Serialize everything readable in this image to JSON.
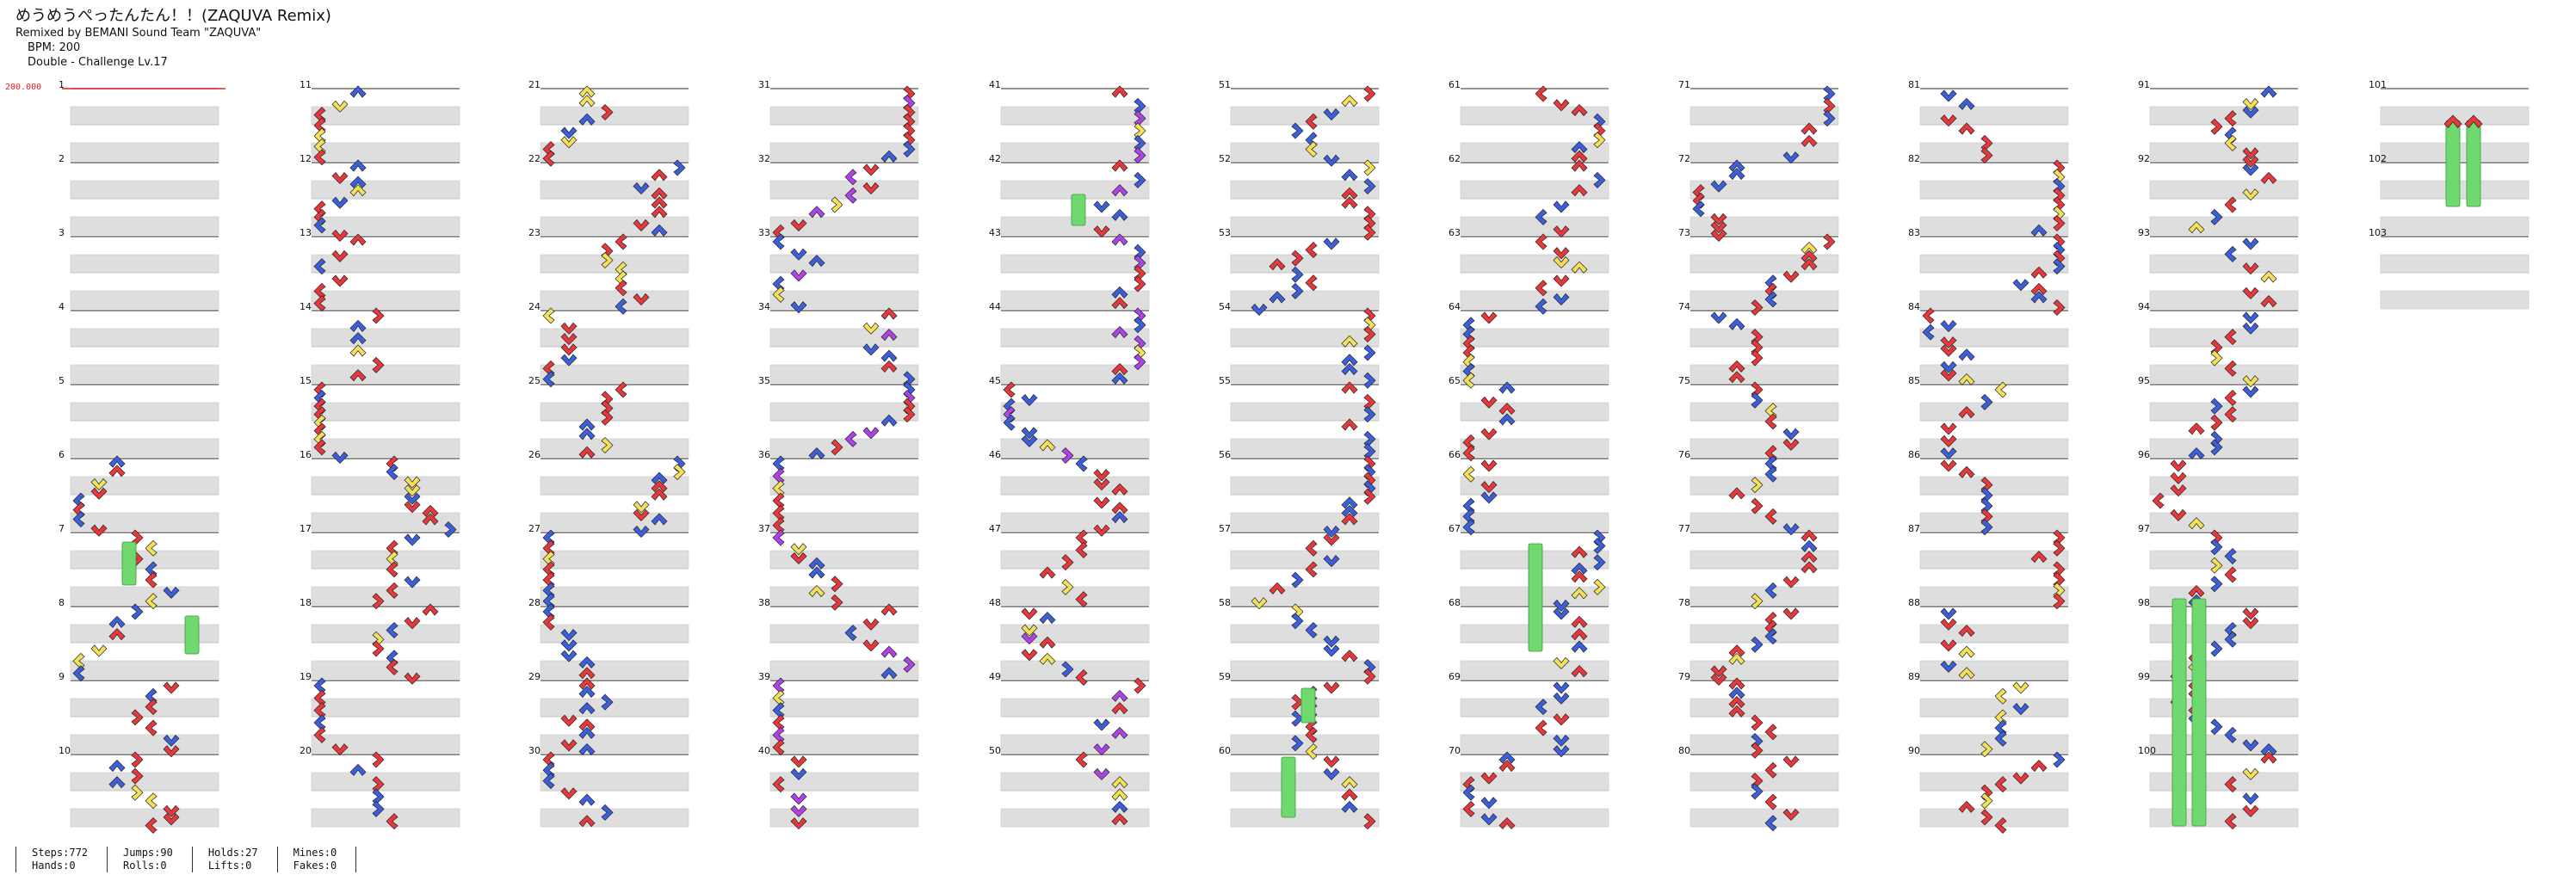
{
  "header": {
    "title": "めうめうぺったんたん！！(ZAQUVA Remix)",
    "artist_line": "Remixed by BEMANI Sound Team \"ZAQUVA\"",
    "bpm_line": "BPM: 200",
    "chart_line": "Double - Challenge Lv.17"
  },
  "bpm_marker": "200.000",
  "measure_numbers": [
    "1",
    "2",
    "3",
    "4",
    "5",
    "6",
    "7",
    "8",
    "9",
    "10",
    "11",
    "12",
    "13",
    "14",
    "15",
    "16",
    "17",
    "18",
    "19",
    "20",
    "21",
    "22",
    "23",
    "24",
    "25",
    "26",
    "27",
    "28",
    "29",
    "30",
    "31",
    "32",
    "33",
    "34",
    "35",
    "36",
    "37",
    "38",
    "39",
    "40",
    "41",
    "42",
    "43",
    "44",
    "45",
    "46",
    "47",
    "48",
    "49",
    "50",
    "51",
    "52",
    "53",
    "54",
    "55",
    "56",
    "57",
    "58",
    "59",
    "60",
    "61",
    "62",
    "63",
    "64",
    "65",
    "66",
    "67",
    "68",
    "69",
    "70",
    "71",
    "72",
    "73",
    "74",
    "75",
    "76",
    "77",
    "78",
    "79",
    "80",
    "81",
    "82",
    "83",
    "84",
    "85",
    "86",
    "87",
    "88",
    "89",
    "90",
    "91",
    "92",
    "93",
    "94",
    "95",
    "96",
    "97",
    "98",
    "99",
    "100",
    "101",
    "102",
    "103"
  ],
  "stats": [
    [
      "Steps:772",
      "Hands:0"
    ],
    [
      "Jumps:90",
      "Rolls:0"
    ],
    [
      "Holds:27",
      "Lifts:0"
    ],
    [
      "Mines:0",
      "Fakes:0"
    ]
  ],
  "colors": {
    "red": "#e8383c",
    "blue": "#3c5fdc",
    "yellow": "#f5e05a",
    "purple": "#b043e8",
    "green": "#6fd86f",
    "band": "#dedede",
    "line": "#555555"
  }
}
